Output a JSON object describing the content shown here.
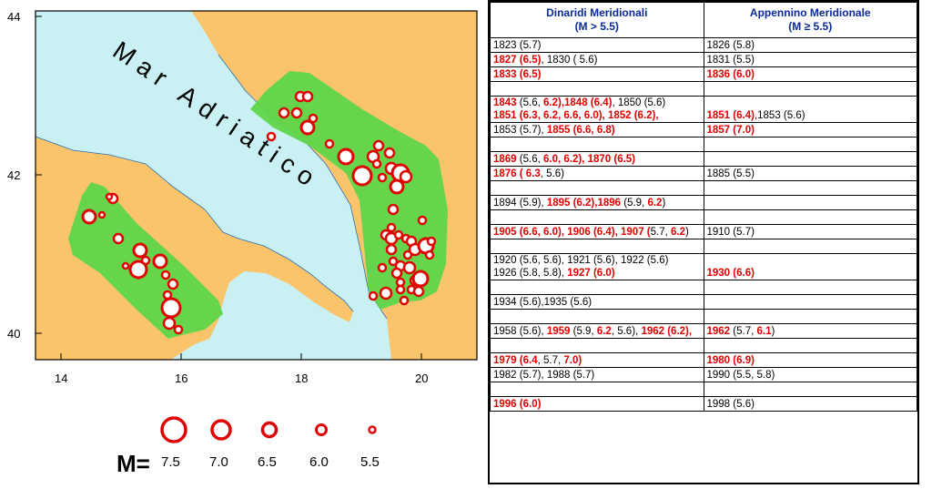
{
  "map": {
    "sea_label": "Mar Adriatico",
    "y_ticks": [
      "44",
      "42",
      "40"
    ],
    "x_ticks": [
      "14",
      "16",
      "18",
      "20"
    ],
    "legend": {
      "prefix": "M=",
      "magnitudes": [
        "7.5",
        "7.0",
        "6.5",
        "6.0",
        "5.5"
      ]
    },
    "colors": {
      "sea": "#c9f1f3",
      "land": "#fbc46a",
      "zone": "#5fd64a",
      "quake": "#e00000"
    }
  },
  "table": {
    "headers": [
      {
        "line1": "Dinaridi Meridionali",
        "line2": "(M > 5.5)"
      },
      {
        "line1": "Appennino Meridionale",
        "line2": "(M ≥ 5.5)"
      }
    ],
    "rows": [
      {
        "left": [
          [
            {
              "t": "1823 (5.7)",
              "c": "k"
            }
          ]
        ],
        "right": [
          [
            {
              "t": "1826 (5.8)",
              "c": "k"
            }
          ]
        ]
      },
      {
        "left": [
          [
            {
              "t": "1827 (6.5)",
              "c": "r"
            },
            {
              "t": ", 1830 ( 5.6)",
              "c": "k"
            }
          ]
        ],
        "right": [
          [
            {
              "t": "1831 (5.5)",
              "c": "k"
            }
          ]
        ]
      },
      {
        "left": [
          [
            {
              "t": "1833 (6.5)",
              "c": "r"
            }
          ]
        ],
        "right": [
          [
            {
              "t": "1836 (6.0)",
              "c": "r"
            }
          ]
        ]
      },
      {
        "left": [
          []
        ],
        "right": [
          []
        ]
      },
      {
        "left": [
          [
            {
              "t": "1843 ",
              "c": "r"
            },
            {
              "t": "(5.6, ",
              "c": "k"
            },
            {
              "t": "6.2),1848 (6.4)",
              "c": "r"
            },
            {
              "t": ", 1850 (5.6)",
              "c": "k"
            }
          ],
          [
            {
              "t": "1851 (6.3, 6.2, 6.6, 6.0), 1852 (6.2),",
              "c": "r"
            }
          ]
        ],
        "right": [
          [],
          [
            {
              "t": "1851 (6.4)",
              "c": "r"
            },
            {
              "t": ",1853 (5.6)",
              "c": "k"
            }
          ]
        ]
      },
      {
        "left": [
          [
            {
              "t": "1853 (5.7), ",
              "c": "k"
            },
            {
              "t": "1855 (6.6, 6.8)",
              "c": "r"
            }
          ]
        ],
        "right": [
          [
            {
              "t": "1857 (7.0)",
              "c": "r"
            }
          ]
        ]
      },
      {
        "left": [
          []
        ],
        "right": [
          []
        ]
      },
      {
        "left": [
          [
            {
              "t": "1869 ",
              "c": "r"
            },
            {
              "t": "(5.6, ",
              "c": "k"
            },
            {
              "t": "6.0, 6.2), 1870 (6.5)",
              "c": "r"
            }
          ]
        ],
        "right": [
          []
        ]
      },
      {
        "left": [
          [
            {
              "t": "1876 ( 6.3",
              "c": "r"
            },
            {
              "t": ", 5.6)",
              "c": "k"
            }
          ]
        ],
        "right": [
          [
            {
              "t": "1885 (5.5)",
              "c": "k"
            }
          ]
        ]
      },
      {
        "left": [
          []
        ],
        "right": [
          []
        ]
      },
      {
        "left": [
          [
            {
              "t": "1894 (5.9), ",
              "c": "k"
            },
            {
              "t": "1895 (6.2),1896 ",
              "c": "r"
            },
            {
              "t": "(5.9, ",
              "c": "k"
            },
            {
              "t": "6.2",
              "c": "r"
            },
            {
              "t": ")",
              "c": "k"
            }
          ]
        ],
        "right": [
          []
        ]
      },
      {
        "left": [
          []
        ],
        "right": [
          []
        ]
      },
      {
        "left": [
          [
            {
              "t": "1905 (6.6, 6.0), 1906 (6.4), 1907 (",
              "c": "r"
            },
            {
              "t": "5.7, ",
              "c": "k"
            },
            {
              "t": "6.2",
              "c": "r"
            },
            {
              "t": ")",
              "c": "k"
            }
          ]
        ],
        "right": [
          [
            {
              "t": "1910 (5.7)",
              "c": "k"
            }
          ]
        ]
      },
      {
        "left": [
          []
        ],
        "right": [
          []
        ]
      },
      {
        "left": [
          [
            {
              "t": "1920 (5.6, 5.6), 1921 (5.6), 1922 (5.6)",
              "c": "k"
            }
          ],
          [
            {
              "t": "1926 (5.8, 5.8), ",
              "c": "k"
            },
            {
              "t": "1927 (6.0)",
              "c": "r"
            }
          ]
        ],
        "right": [
          [],
          [
            {
              "t": "1930 (6.6)",
              "c": "r"
            }
          ]
        ]
      },
      {
        "left": [
          []
        ],
        "right": [
          []
        ]
      },
      {
        "left": [
          [
            {
              "t": "1934 (5.6),1935 (5.6)",
              "c": "k"
            }
          ]
        ],
        "right": [
          []
        ]
      },
      {
        "left": [
          []
        ],
        "right": [
          []
        ]
      },
      {
        "left": [
          [
            {
              "t": "1958 (5.6), ",
              "c": "k"
            },
            {
              "t": "1959 ",
              "c": "r"
            },
            {
              "t": "(5.9, ",
              "c": "k"
            },
            {
              "t": "6.2",
              "c": "r"
            },
            {
              "t": ", 5.6), ",
              "c": "k"
            },
            {
              "t": "1962 (6.2),",
              "c": "r"
            }
          ]
        ],
        "right": [
          [
            {
              "t": "1962 ",
              "c": "r"
            },
            {
              "t": "(5.7, ",
              "c": "k"
            },
            {
              "t": "6.1",
              "c": "r"
            },
            {
              "t": ")",
              "c": "k"
            }
          ]
        ]
      },
      {
        "left": [
          []
        ],
        "right": [
          []
        ]
      },
      {
        "left": [
          [
            {
              "t": "1979 (6.4",
              "c": "r"
            },
            {
              "t": ", 5.7, ",
              "c": "k"
            },
            {
              "t": "7.0)",
              "c": "r"
            }
          ]
        ],
        "right": [
          [
            {
              "t": "1980 (6.9)",
              "c": "r"
            }
          ]
        ]
      },
      {
        "left": [
          [
            {
              "t": "1982 (5.7), 1988 (5.7)",
              "c": "k"
            }
          ]
        ],
        "right": [
          [
            {
              "t": "1990 (5.5, 5.8)",
              "c": "k"
            }
          ]
        ]
      },
      {
        "left": [
          []
        ],
        "right": [
          []
        ]
      },
      {
        "left": [
          [
            {
              "t": "1996 (6.0)",
              "c": "r"
            }
          ]
        ],
        "right": [
          [
            {
              "t": "1998 (5.6)",
              "c": "k"
            }
          ]
        ]
      }
    ]
  }
}
